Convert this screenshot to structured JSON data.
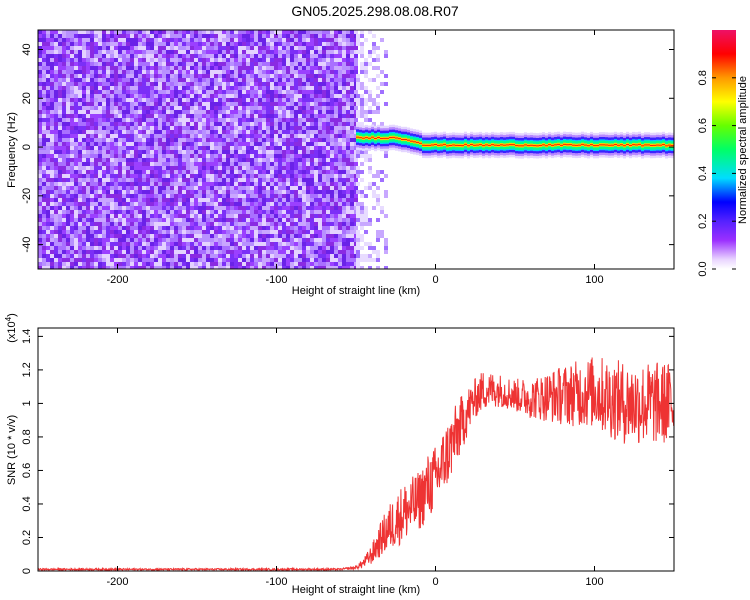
{
  "title": "GN05.2025.298.08.08.R07",
  "chart_data": [
    {
      "type": "heatmap",
      "xlabel": "Height of straight line (km)",
      "ylabel": "Frequency (Hz)",
      "xlim": [
        -250,
        150
      ],
      "ylim": [
        -50,
        48
      ],
      "x_ticks": [
        -200,
        -100,
        0,
        100
      ],
      "y_ticks": [
        -40,
        -20,
        0,
        20,
        40
      ],
      "colorbar": {
        "label": "Normalized spectral amplitude",
        "range": [
          0,
          1
        ],
        "ticks": [
          0.0,
          0.2,
          0.4,
          0.6,
          0.8
        ]
      },
      "regions": [
        {
          "kind": "noise",
          "x_range": [
            -250,
            -50
          ],
          "y_range": [
            -50,
            48
          ],
          "amplitude": 0.2
        },
        {
          "kind": "transition",
          "x_range": [
            -50,
            -30
          ],
          "y_range": [
            -50,
            48
          ],
          "amplitude": 0.1
        },
        {
          "kind": "signal-band",
          "x_range": [
            -50,
            150
          ],
          "center_frequency": 1,
          "amplitude": 0.85
        }
      ]
    },
    {
      "type": "line",
      "xlabel": "Height of straight line (km)",
      "ylabel": "SNR (10 * v/v)",
      "y_multiplier_label": "(x10",
      "y_multiplier_exp": "4",
      "y_multiplier_close": ")",
      "xlim": [
        -250,
        150
      ],
      "ylim": [
        0,
        1.45
      ],
      "x_ticks": [
        -200,
        -100,
        0,
        100
      ],
      "y_ticks": [
        0.0,
        0.2,
        0.4,
        0.6,
        0.8,
        1.0,
        1.2,
        1.4
      ],
      "series": [
        {
          "color": "#ee3333",
          "x": [
            -250,
            -100,
            -60,
            -50,
            -45,
            -40,
            -35,
            -30,
            -25,
            -20,
            -15,
            -10,
            -5,
            0,
            5,
            10,
            15,
            20,
            25,
            30,
            40,
            50,
            60,
            70,
            80,
            90,
            100,
            110,
            120,
            130,
            140,
            150
          ],
          "y": [
            0.01,
            0.01,
            0.01,
            0.02,
            0.05,
            0.1,
            0.18,
            0.25,
            0.3,
            0.35,
            0.38,
            0.42,
            0.5,
            0.55,
            0.65,
            0.75,
            0.85,
            0.95,
            1.03,
            1.08,
            1.08,
            1.05,
            1.03,
            1.04,
            1.05,
            1.06,
            1.07,
            1.03,
            1.0,
            1.0,
            1.0,
            1.0
          ],
          "noise_amplitude": [
            0.005,
            0.005,
            0.005,
            0.01,
            0.03,
            0.06,
            0.1,
            0.14,
            0.16,
            0.18,
            0.18,
            0.18,
            0.2,
            0.2,
            0.2,
            0.2,
            0.18,
            0.15,
            0.12,
            0.12,
            0.1,
            0.1,
            0.12,
            0.15,
            0.18,
            0.2,
            0.22,
            0.24,
            0.25,
            0.25,
            0.25,
            0.25
          ]
        }
      ]
    }
  ]
}
